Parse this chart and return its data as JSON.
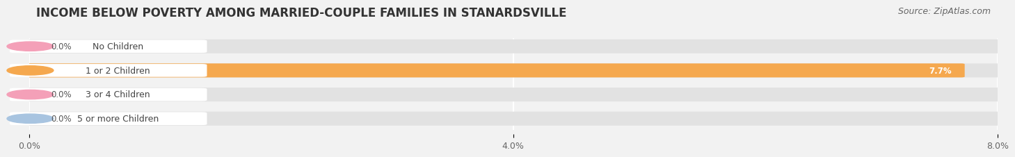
{
  "title": "INCOME BELOW POVERTY AMONG MARRIED-COUPLE FAMILIES IN STANARDSVILLE",
  "source": "Source: ZipAtlas.com",
  "categories": [
    "No Children",
    "1 or 2 Children",
    "3 or 4 Children",
    "5 or more Children"
  ],
  "values": [
    0.0,
    7.7,
    0.0,
    0.0
  ],
  "bar_colors": [
    "#f4a0b8",
    "#f5a84e",
    "#f4a0b8",
    "#a8c4e0"
  ],
  "accent_colors": [
    "#f4a0b8",
    "#f5a84e",
    "#f4a0b8",
    "#a8c4e0"
  ],
  "xlim": [
    0,
    8.0
  ],
  "xticks": [
    0.0,
    4.0,
    8.0
  ],
  "xticklabels": [
    "0.0%",
    "4.0%",
    "8.0%"
  ],
  "background_color": "#f2f2f2",
  "bar_background_color": "#e2e2e2",
  "label_box_color": "#ffffff",
  "title_fontsize": 12,
  "source_fontsize": 9,
  "bar_height": 0.52,
  "label_fontsize": 9,
  "value_fontsize": 8.5
}
